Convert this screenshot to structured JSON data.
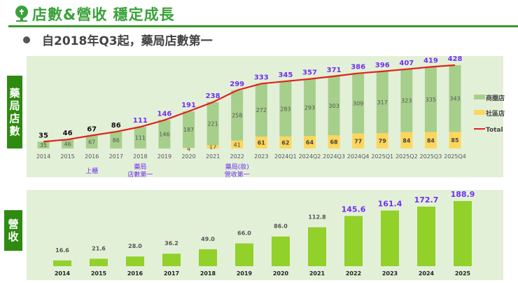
{
  "header": {
    "title": "店數&營收  穩定成長",
    "subtitle": "自2018年Q3起，藥局店數第一"
  },
  "colors": {
    "green_bar": "#a6cf8c",
    "yellow_bar": "#fdd65c",
    "total_line": "#e0241b",
    "highlight": "#7030f0",
    "revenue_bar": "#92d02a"
  },
  "stores_tab": "藥局店數",
  "revenue_tab": "營收",
  "chart_data": [
    {
      "type": "bar",
      "stacked": true,
      "categories": [
        "2014",
        "2015",
        "2016",
        "2017",
        "2018",
        "2019",
        "2020",
        "2021",
        "2022",
        "2023",
        "2024Q1",
        "2024Q2",
        "2024Q3",
        "2024Q4",
        "2025Q1",
        "2025Q2",
        "2025Q3",
        "2025Q4"
      ],
      "series": [
        {
          "name": "商圈店",
          "values": [
            35,
            46,
            67,
            86,
            111,
            146,
            187,
            221,
            258,
            272,
            283,
            293,
            303,
            309,
            317,
            323,
            335,
            343
          ]
        },
        {
          "name": "社區店",
          "values": [
            0,
            0,
            0,
            0,
            0,
            0,
            4,
            17,
            41,
            61,
            62,
            64,
            68,
            77,
            79,
            84,
            84,
            85
          ]
        },
        {
          "name": "Total",
          "type": "line",
          "values": [
            35,
            46,
            67,
            86,
            111,
            146,
            191,
            238,
            299,
            333,
            345,
            357,
            371,
            386,
            396,
            407,
            419,
            428
          ]
        }
      ],
      "annotations": [
        {
          "category": "2016",
          "text": "上櫃"
        },
        {
          "category": "2018",
          "text": "藥局\n店數第一"
        },
        {
          "category": "2022",
          "text": "藥局(妝)\n營收第一"
        }
      ],
      "legend": "right"
    },
    {
      "type": "bar",
      "categories": [
        "2014",
        "2015",
        "2016",
        "2017",
        "2018",
        "2019",
        "2020",
        "2021",
        "2022",
        "2023",
        "2024",
        "2025"
      ],
      "values": [
        16.6,
        21.6,
        28.0,
        36.2,
        49.0,
        66.0,
        86.0,
        112.8,
        145.6,
        161.4,
        172.7,
        188.9
      ]
    }
  ]
}
